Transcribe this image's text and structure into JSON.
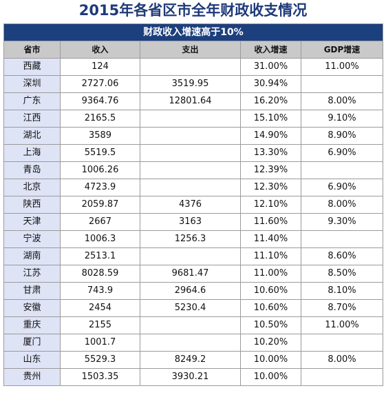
{
  "title": "2015年各省区市全年财政收支情况",
  "table": {
    "banner": "财政收入增速高于10%",
    "headers": [
      "省市",
      "收入",
      "支出",
      "收入增速",
      "GDP增速"
    ],
    "rows": [
      [
        "西藏",
        "124",
        "",
        "31.00%",
        "11.00%"
      ],
      [
        "深圳",
        "2727.06",
        "3519.95",
        "30.94%",
        ""
      ],
      [
        "广东",
        "9364.76",
        "12801.64",
        "16.20%",
        "8.00%"
      ],
      [
        "江西",
        "2165.5",
        "",
        "15.10%",
        "9.10%"
      ],
      [
        "湖北",
        "3589",
        "",
        "14.90%",
        "8.90%"
      ],
      [
        "上海",
        "5519.5",
        "",
        "13.30%",
        "6.90%"
      ],
      [
        "青岛",
        "1006.26",
        "",
        "12.39%",
        ""
      ],
      [
        "北京",
        "4723.9",
        "",
        "12.30%",
        "6.90%"
      ],
      [
        "陕西",
        "2059.87",
        "4376",
        "12.10%",
        "8.00%"
      ],
      [
        "天津",
        "2667",
        "3163",
        "11.60%",
        "9.30%"
      ],
      [
        "宁波",
        "1006.3",
        "1256.3",
        "11.40%",
        ""
      ],
      [
        "湖南",
        "2513.1",
        "",
        "11.10%",
        "8.60%"
      ],
      [
        "江苏",
        "8028.59",
        "9681.47",
        "11.00%",
        "8.50%"
      ],
      [
        "甘肃",
        "743.9",
        "2964.6",
        "10.60%",
        "8.10%"
      ],
      [
        "安徽",
        "2454",
        "5230.4",
        "10.60%",
        "8.70%"
      ],
      [
        "重庆",
        "2155",
        "",
        "10.50%",
        "11.00%"
      ],
      [
        "厦门",
        "1001.7",
        "",
        "10.20%",
        ""
      ],
      [
        "山东",
        "5529.3",
        "8249.2",
        "10.00%",
        "8.00%"
      ],
      [
        "贵州",
        "1503.35",
        "3930.21",
        "10.00%",
        ""
      ]
    ]
  },
  "colors": {
    "title": "#1e3a7a",
    "banner_bg": "#1c3f7d",
    "header_bg": "#c9c9c9",
    "province_bg": "#dfe3f6"
  }
}
